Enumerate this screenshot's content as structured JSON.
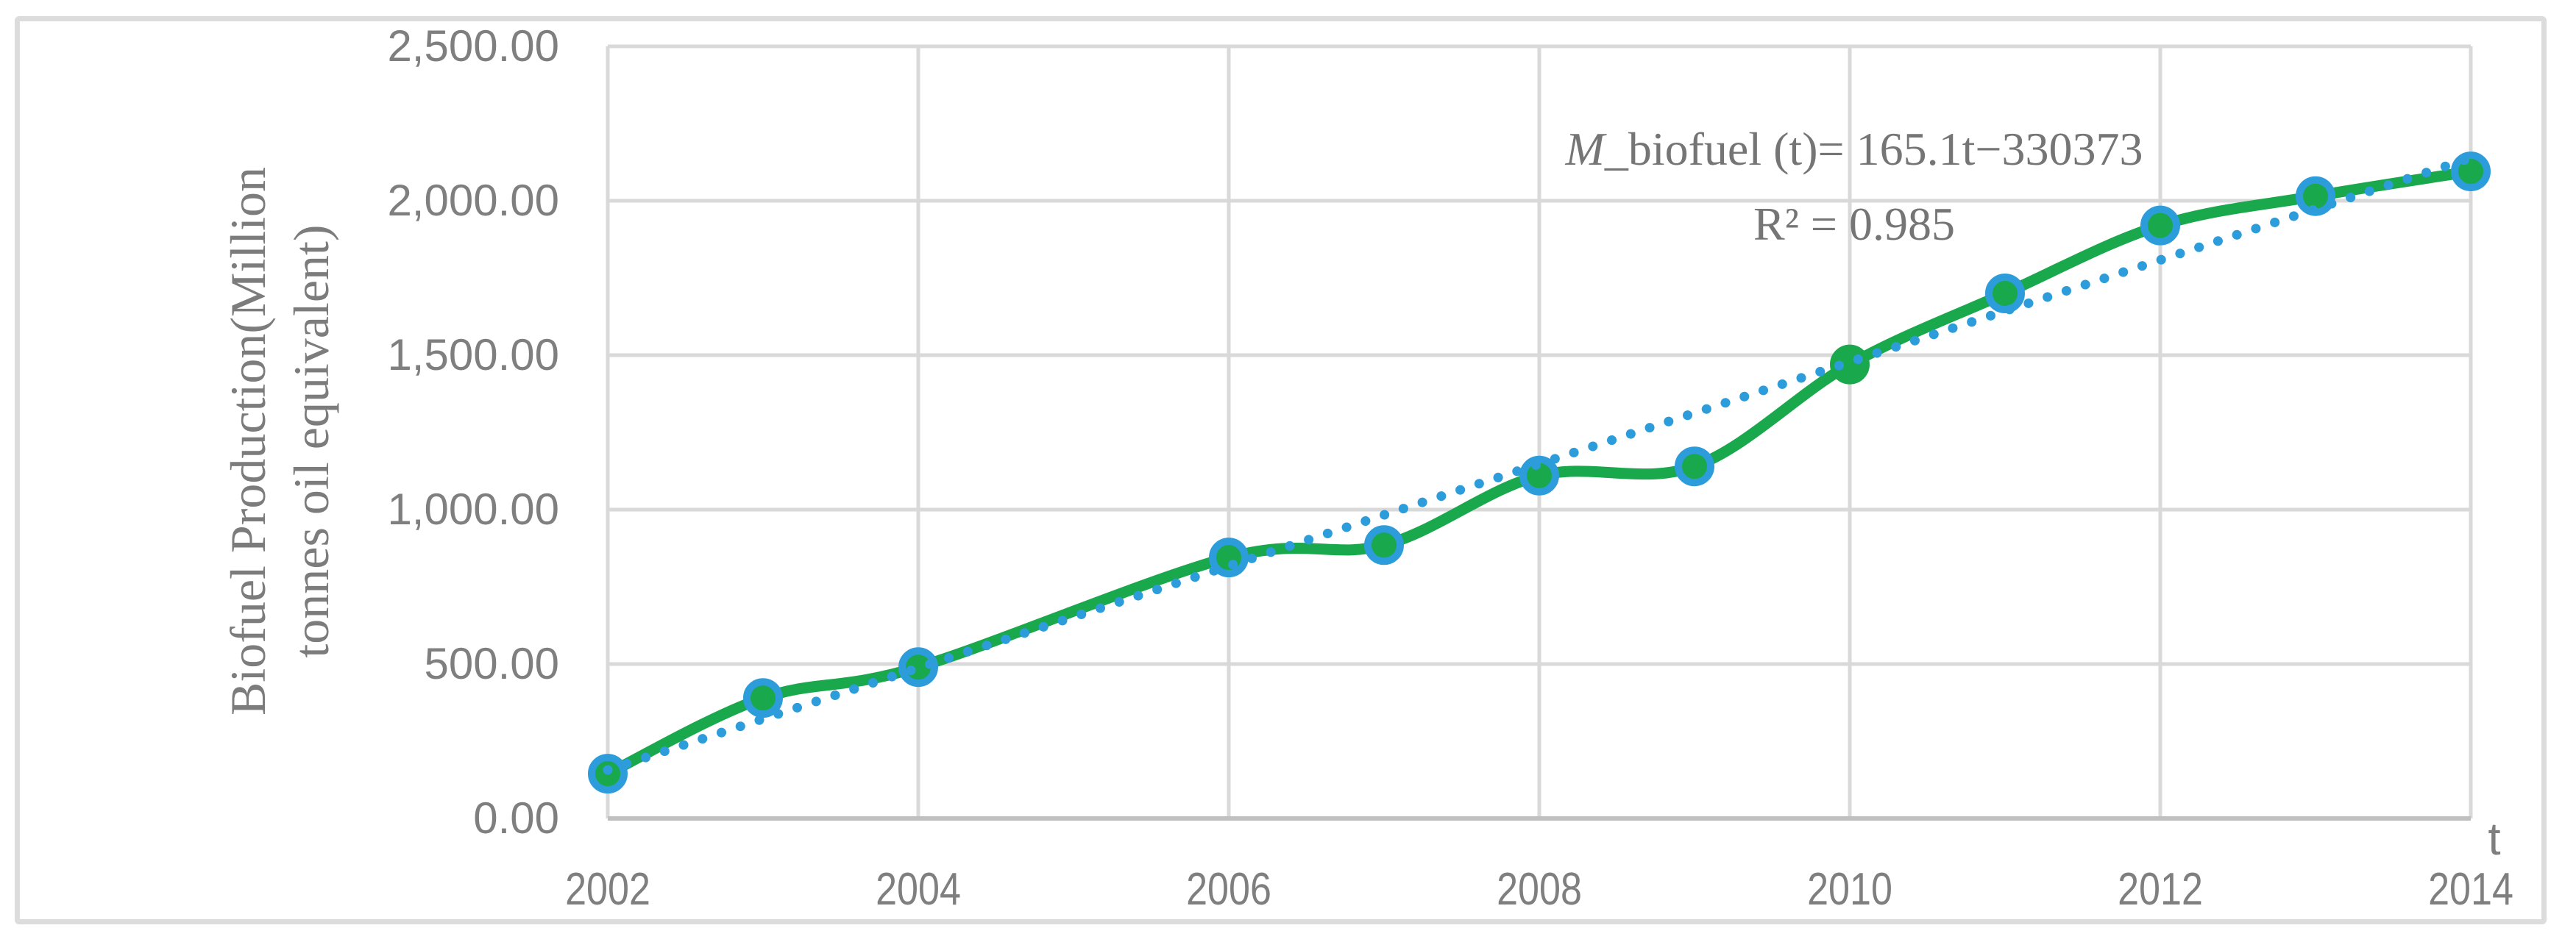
{
  "figure": {
    "border_color": "#dcdcdc",
    "background_color": "#ffffff"
  },
  "chart_data": {
    "type": "line",
    "title": "",
    "x": [
      2002,
      2003,
      2004,
      2006,
      2007,
      2008,
      2009,
      2010,
      2011,
      2012,
      2013,
      2014
    ],
    "series": [
      {
        "name": "biofuel-production-data",
        "color": "#19a84c",
        "marker_fill": "#19a84c",
        "marker_ring": "#2d9cda",
        "values": [
          145,
          390,
          490,
          845,
          885,
          1110,
          1140,
          1470,
          1700,
          1920,
          2015,
          2095
        ]
      }
    ],
    "marker_ring_exceptions": [
      {
        "x": 2010,
        "ring": "#19a84c"
      }
    ],
    "trendline": {
      "name": "linear-fit",
      "color": "#2d9cda",
      "style": "dotted",
      "slope": 165.1,
      "intercept": -330373,
      "x_start": 2002,
      "x_end": 2014,
      "equation_m": "M",
      "equation_rest": "_biofuel (t)= 165.1t−330373",
      "r_squared": "R² = 0.985"
    },
    "xlabel": "t",
    "ylabel_line1": "Biofuel Production(Million",
    "ylabel_line2": "tonnes oil equivalent)",
    "x_ticks": [
      "2002",
      "2004",
      "2006",
      "2008",
      "2010",
      "2012",
      "2014"
    ],
    "y_ticks": [
      "0.00",
      "500.00",
      "1,000.00",
      "1,500.00",
      "2,000.00",
      "2,500.00"
    ],
    "x_range": [
      2002,
      2014
    ],
    "y_range": [
      0,
      2500
    ],
    "y_step": 500,
    "x_step": 2,
    "grid": true,
    "legend": "none",
    "grid_color": "#d9d9d9",
    "axis_line_color": "#c0c0c0",
    "tick_text_color": "#7f7f7f"
  }
}
